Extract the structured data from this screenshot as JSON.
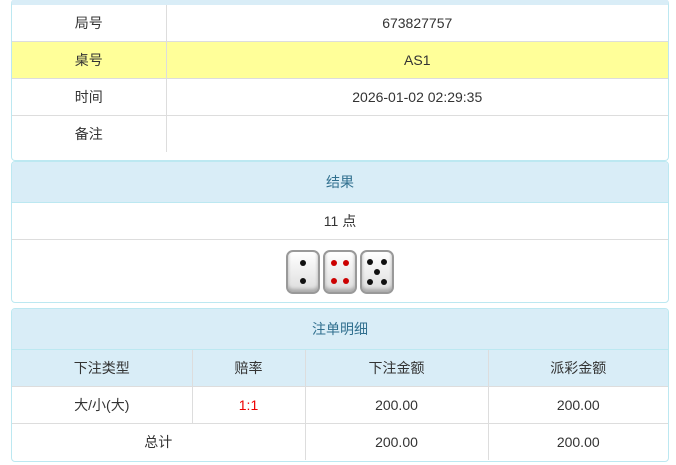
{
  "info": {
    "rows": [
      {
        "label": "局号",
        "value": "673827757"
      },
      {
        "label": "桌号",
        "value": "AS1"
      },
      {
        "label": "时间",
        "value": "2026-01-02 02:29:35"
      },
      {
        "label": "备注",
        "value": ""
      }
    ]
  },
  "result": {
    "title": "结果",
    "points": "11 点",
    "dice": [
      2,
      4,
      5
    ]
  },
  "bets": {
    "title": "注单明细",
    "headers": [
      "下注类型",
      "赔率",
      "下注金额",
      "派彩金额"
    ],
    "rows": [
      {
        "type": "大/小(大)",
        "odds": "1:1",
        "amount": "200.00",
        "payout": "200.00"
      }
    ],
    "total": {
      "label": "总计",
      "amount": "200.00",
      "payout": "200.00"
    }
  },
  "colors": {
    "header_bg": "#d9edf7",
    "highlight_row": "#ffff99",
    "odds": "#ee0000"
  }
}
